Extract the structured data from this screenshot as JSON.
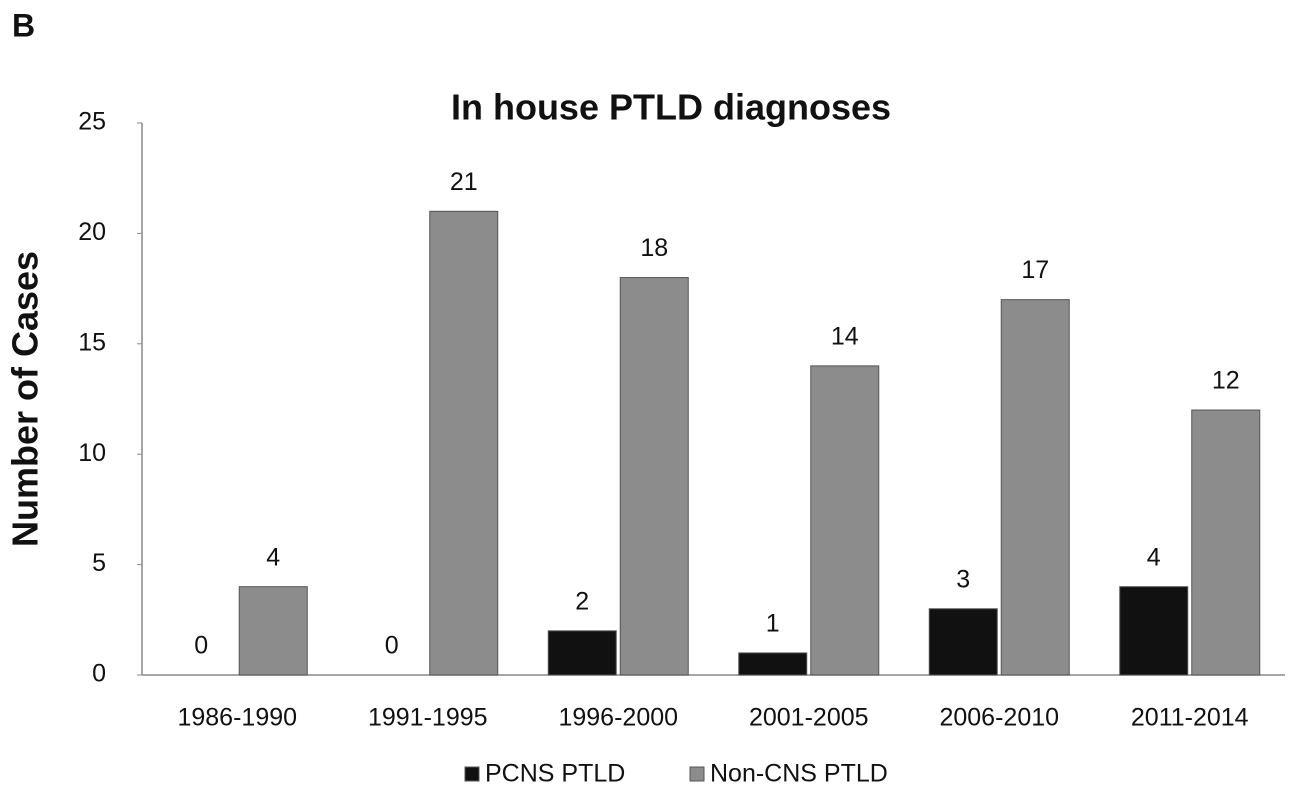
{
  "panel_label": "B",
  "chart_data": {
    "type": "bar",
    "title": "In house PTLD diagnoses",
    "y_label": "Number of Cases",
    "categories": [
      "1986-1990",
      "1991-1995",
      "1996-2000",
      "2001-2005",
      "2006-2010",
      "2011-2014"
    ],
    "series": [
      {
        "name": "PCNS PTLD",
        "color": "#111111",
        "values": [
          0,
          0,
          2,
          1,
          3,
          4
        ]
      },
      {
        "name": "Non-CNS PTLD",
        "color": "#8c8c8c",
        "values": [
          4,
          21,
          18,
          14,
          17,
          12
        ]
      }
    ],
    "ylim": [
      0,
      25
    ],
    "yticks": [
      0,
      5,
      10,
      15,
      20,
      25
    ],
    "grid": false,
    "legend": "bottom"
  }
}
